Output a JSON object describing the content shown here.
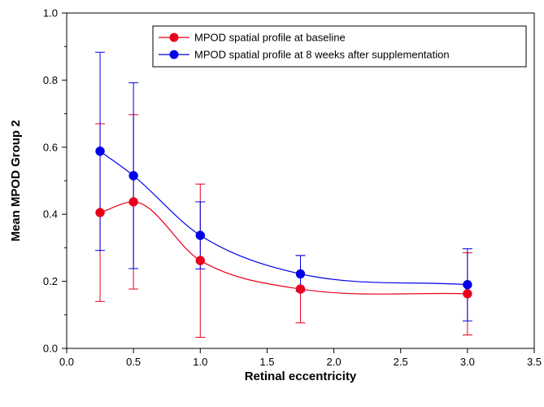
{
  "chart_data": {
    "type": "line",
    "title": "",
    "xlabel": "Retinal eccentricity",
    "ylabel": "Mean MPOD Group 2",
    "xlim": [
      0.0,
      3.5
    ],
    "ylim": [
      0.0,
      1.0
    ],
    "xticks": [
      "0.0",
      "0.5",
      "1.0",
      "1.5",
      "2.0",
      "2.5",
      "3.0",
      "3.5"
    ],
    "yticks": [
      "0.0",
      "0.2",
      "0.4",
      "0.6",
      "0.8",
      "1.0"
    ],
    "grid": false,
    "legend_position": "top-right",
    "x": [
      0.25,
      0.5,
      1.0,
      1.75,
      3.0
    ],
    "series": [
      {
        "name": "MPOD spatial profile at baseline",
        "color": "#e8001c",
        "values": [
          0.405,
          0.437,
          0.262,
          0.177,
          0.163
        ],
        "error_upper": [
          0.67,
          0.697,
          0.49,
          0.277,
          0.285
        ],
        "error_lower": [
          0.14,
          0.177,
          0.033,
          0.076,
          0.04
        ]
      },
      {
        "name": "MPOD spatial profile at 8 weeks after supplementation",
        "color": "#0000e8",
        "values": [
          0.588,
          0.515,
          0.337,
          0.222,
          0.19
        ],
        "error_upper": [
          0.883,
          0.792,
          0.437,
          0.277,
          0.297
        ],
        "error_lower": [
          0.292,
          0.238,
          0.237,
          0.17,
          0.082
        ]
      }
    ]
  }
}
